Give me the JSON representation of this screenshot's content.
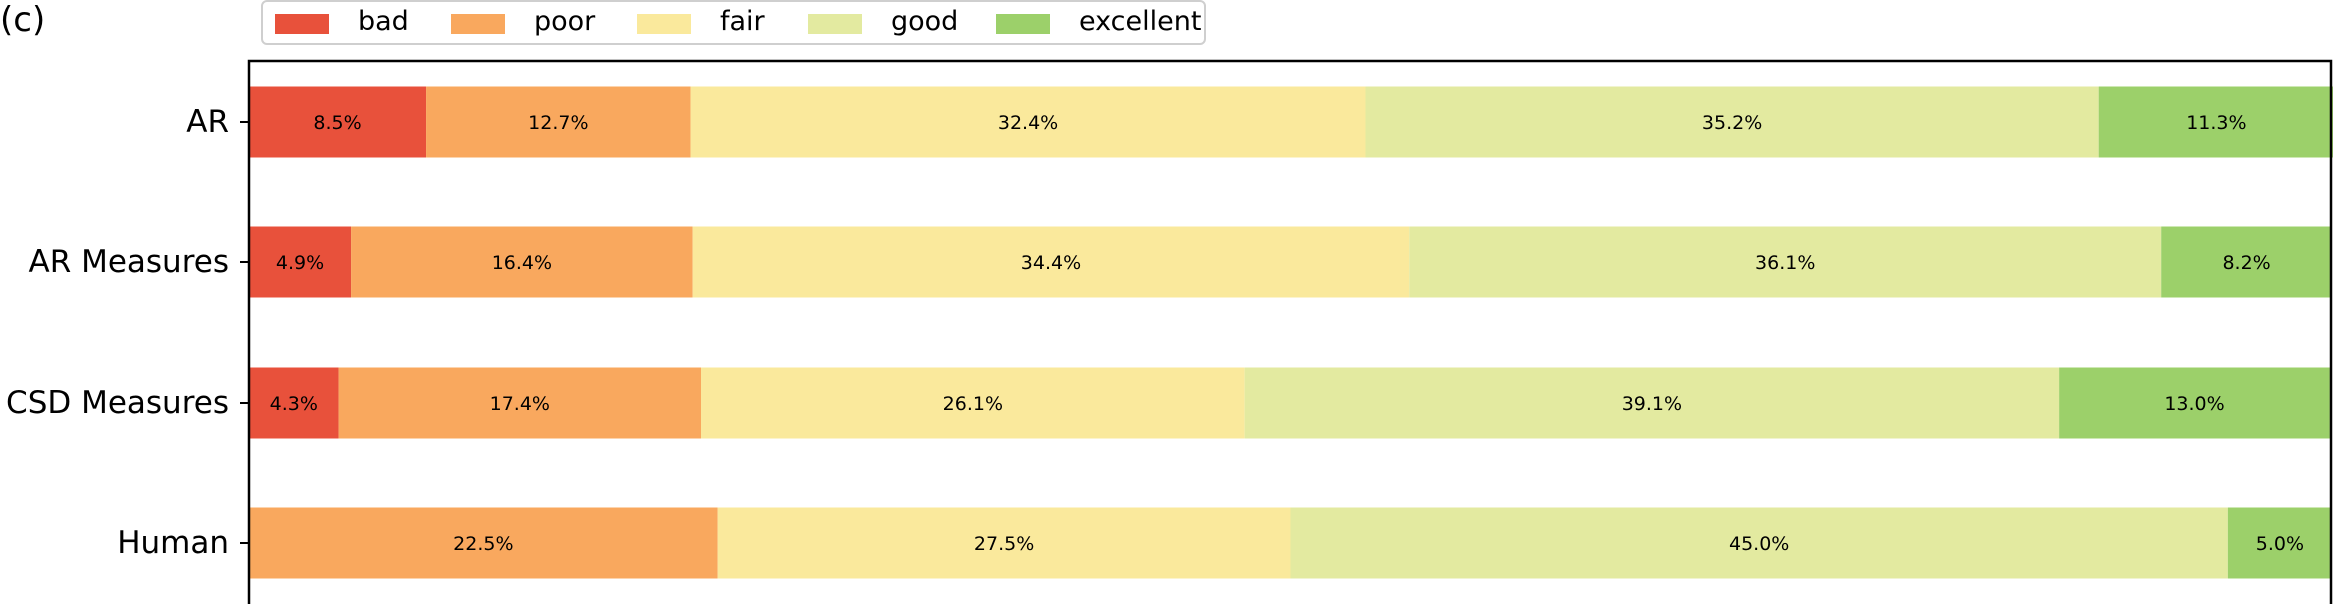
{
  "panel_label": "(c)",
  "chart_data": {
    "type": "bar",
    "orientation": "horizontal",
    "stacked": true,
    "categories": [
      "AR",
      "AR Measures",
      "CSD Measures",
      "Human"
    ],
    "series": [
      {
        "name": "bad",
        "color": "#e8513b",
        "values": [
          8.5,
          4.9,
          4.3,
          0.0
        ]
      },
      {
        "name": "poor",
        "color": "#f9a85e",
        "values": [
          12.7,
          16.4,
          17.4,
          22.5
        ]
      },
      {
        "name": "fair",
        "color": "#fae99c",
        "values": [
          32.4,
          34.4,
          26.1,
          27.5
        ]
      },
      {
        "name": "good",
        "color": "#e3eaa0",
        "values": [
          35.2,
          36.1,
          39.1,
          45.0
        ]
      },
      {
        "name": "excellent",
        "color": "#9cd06a",
        "values": [
          11.3,
          8.2,
          13.0,
          5.0
        ]
      }
    ],
    "labels": [
      [
        "8.5%",
        "12.7%",
        "32.4%",
        "35.2%",
        "11.3%"
      ],
      [
        "4.9%",
        "16.4%",
        "34.4%",
        "36.1%",
        "8.2%"
      ],
      [
        "4.3%",
        "17.4%",
        "26.1%",
        "39.1%",
        "13.0%"
      ],
      [
        "",
        "22.5%",
        "27.5%",
        "45.0%",
        "5.0%"
      ]
    ],
    "xlim": [
      0,
      100
    ],
    "legend_position": "top-left",
    "grid": false
  }
}
